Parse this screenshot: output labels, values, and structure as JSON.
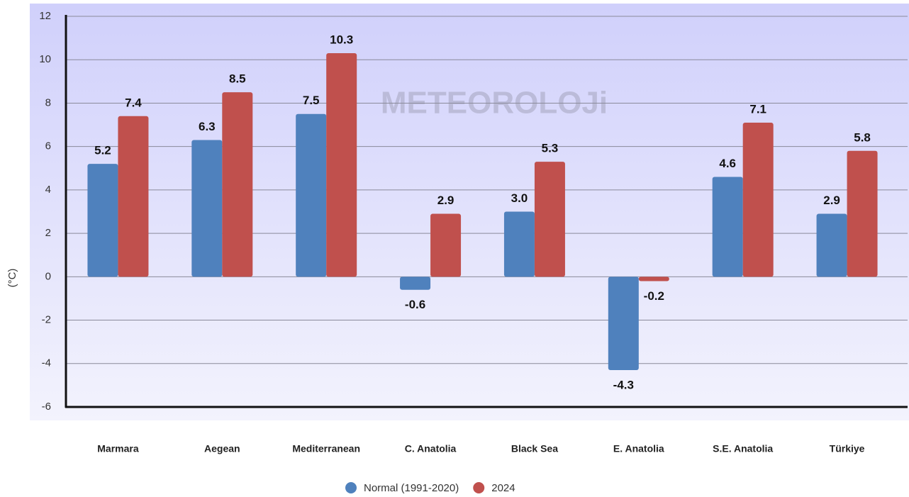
{
  "chart_data": {
    "type": "bar",
    "watermark": "METEOROLOJi",
    "y_label": "(°C)",
    "categories": [
      "Marmara",
      "Aegean",
      "Mediterranean",
      "C. Anatolia",
      "Black Sea",
      "E. Anatolia",
      "S.E. Anatolia",
      "Türkiye"
    ],
    "series": [
      {
        "name": "Normal (1991-2020)",
        "color": "#4f81bd",
        "values": [
          5.2,
          6.3,
          7.5,
          -0.6,
          3.0,
          -4.3,
          4.6,
          2.9
        ],
        "value_labels": [
          "5.2",
          "6.3",
          "7.5",
          "-0.6",
          "3.0",
          "-4.3",
          "4.6",
          "2.9"
        ]
      },
      {
        "name": "2024",
        "color": "#c0504d",
        "values": [
          7.4,
          8.5,
          10.3,
          2.9,
          5.3,
          -0.2,
          7.1,
          5.8
        ],
        "value_labels": [
          "7.4",
          "8.5",
          "10.3",
          "2.9",
          "5.3",
          "-0.2",
          "7.1",
          "5.8"
        ]
      }
    ],
    "ylim": [
      -6,
      12
    ],
    "yticks": [
      -6,
      -4,
      -2,
      0,
      2,
      4,
      6,
      8,
      10,
      12
    ],
    "grid": true
  }
}
